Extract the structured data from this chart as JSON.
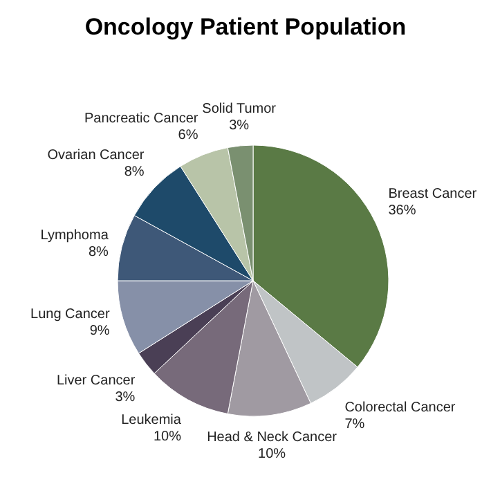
{
  "chart_data": {
    "type": "pie",
    "title": "Oncology Patient Population",
    "categories": [
      "Breast Cancer",
      "Colorectal Cancer",
      "Head & Neck Cancer",
      "Leukemia",
      "Liver Cancer",
      "Lung Cancer",
      "Lymphoma",
      "Ovarian Cancer",
      "Pancreatic Cancer",
      "Solid Tumor"
    ],
    "values": [
      36,
      7,
      10,
      10,
      3,
      9,
      8,
      8,
      6,
      3
    ],
    "value_labels": [
      "36%",
      "7%",
      "10%",
      "10%",
      "3%",
      "9%",
      "8%",
      "8%",
      "6%",
      "3%"
    ],
    "colors": [
      "#5a7a45",
      "#c0c4c6",
      "#a09aa2",
      "#776a7a",
      "#4a3f55",
      "#8690a8",
      "#3e5878",
      "#1e4a6a",
      "#b8c4a8",
      "#7a9070"
    ]
  }
}
